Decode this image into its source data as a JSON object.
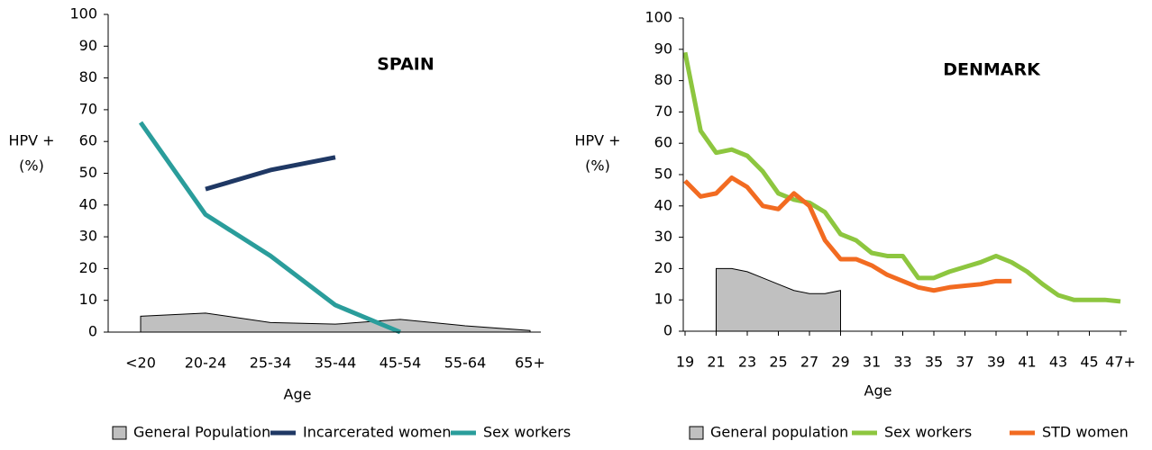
{
  "chart_data": [
    {
      "type": "line",
      "title": "SPAIN",
      "y_label": [
        "HPV +",
        "(%)"
      ],
      "x_label": "Age",
      "categories": [
        "<20",
        "20-24",
        "25-34",
        "35-44",
        "45-54",
        "55-64",
        "65+"
      ],
      "ylim": [
        0,
        100
      ],
      "yticks": [
        0,
        10,
        20,
        30,
        40,
        50,
        60,
        70,
        80,
        90,
        100
      ],
      "series": [
        {
          "name": "General Population",
          "style": "area",
          "color": "#c0c0c0",
          "values": [
            5,
            6,
            3,
            2.5,
            4,
            2,
            0.5
          ]
        },
        {
          "name": "Incarcerated women",
          "style": "line",
          "color": "#1f3864",
          "values": [
            null,
            45,
            51,
            55,
            null,
            null,
            null
          ]
        },
        {
          "name": "Sex workers",
          "style": "line",
          "color": "#2a9d9b",
          "values": [
            66,
            37,
            24,
            8.5,
            0,
            null,
            null
          ]
        }
      ]
    },
    {
      "type": "line",
      "title": "DENMARK",
      "y_label": [
        "HPV +",
        "(%)"
      ],
      "x_label": "Age",
      "xlim": [
        19,
        47
      ],
      "xticks": [
        19,
        21,
        23,
        25,
        27,
        29,
        31,
        33,
        35,
        37,
        39,
        41,
        43,
        45,
        {
          "value": 47,
          "label": "47+"
        }
      ],
      "ylim": [
        0,
        100
      ],
      "yticks": [
        0,
        10,
        20,
        30,
        40,
        50,
        60,
        70,
        80,
        90,
        100
      ],
      "series": [
        {
          "name": "General population",
          "style": "area",
          "color": "#c0c0c0",
          "x": [
            21,
            22,
            23,
            24,
            25,
            26,
            27,
            28,
            29
          ],
          "values": [
            20,
            20,
            19,
            17,
            15,
            13,
            12,
            12,
            13
          ]
        },
        {
          "name": "Sex workers",
          "style": "line",
          "color": "#8dc63f",
          "x": [
            19,
            20,
            21,
            22,
            23,
            24,
            25,
            26,
            27,
            28,
            29,
            30,
            31,
            32,
            33,
            34,
            35,
            36,
            37,
            38,
            39,
            40,
            41,
            42,
            43,
            44,
            45,
            46,
            47
          ],
          "values": [
            89,
            64,
            57,
            58,
            56,
            51,
            44,
            42,
            41,
            38,
            31,
            29,
            25,
            24,
            24,
            17,
            17,
            19,
            20.5,
            22,
            24,
            22,
            19,
            15,
            11.5,
            10,
            10,
            10,
            9.5
          ]
        },
        {
          "name": "STD women",
          "style": "line",
          "color": "#f26b21",
          "x": [
            19,
            20,
            21,
            22,
            23,
            24,
            25,
            26,
            27,
            28,
            29,
            30,
            31,
            32,
            33,
            34,
            35,
            36,
            37,
            38,
            39,
            40
          ],
          "values": [
            48,
            43,
            44,
            49,
            46,
            40,
            39,
            44,
            40,
            29,
            23,
            23,
            21,
            18,
            16,
            14,
            13,
            14,
            14.5,
            15,
            16,
            16
          ]
        }
      ]
    }
  ]
}
